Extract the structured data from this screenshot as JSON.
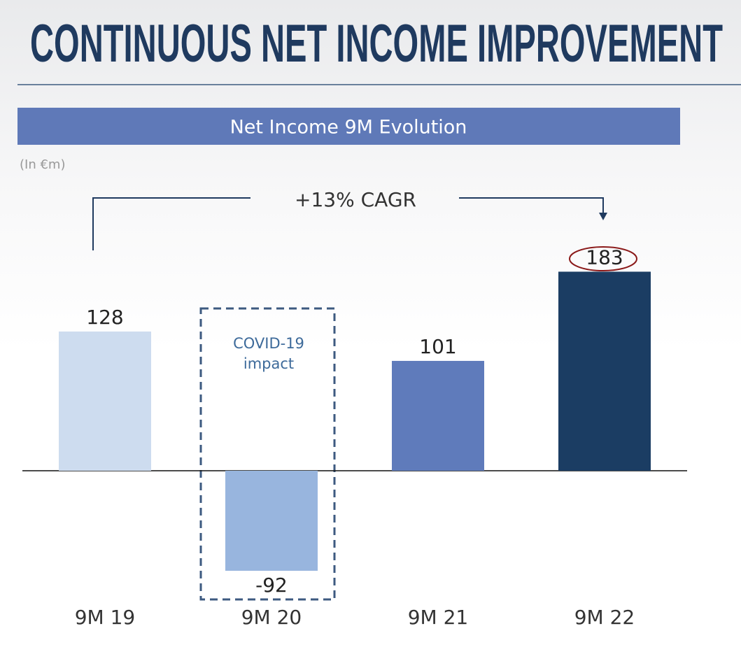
{
  "header": {
    "title": "CONTINUOUS NET INCOME IMPROVEMENT"
  },
  "chart_data": {
    "type": "bar",
    "title": "Net Income 9M Evolution",
    "unit_note": "(In €m)",
    "categories": [
      "9M 19",
      "9M 20",
      "9M 21",
      "9M 22"
    ],
    "values": [
      128,
      -92,
      101,
      183
    ],
    "colors": [
      "#cddcef",
      "#98b5de",
      "#5f7bbb",
      "#1b3d63"
    ],
    "annotations": {
      "cagr": "+13% CAGR",
      "covid": [
        "COVID-19",
        "impact"
      ]
    }
  }
}
